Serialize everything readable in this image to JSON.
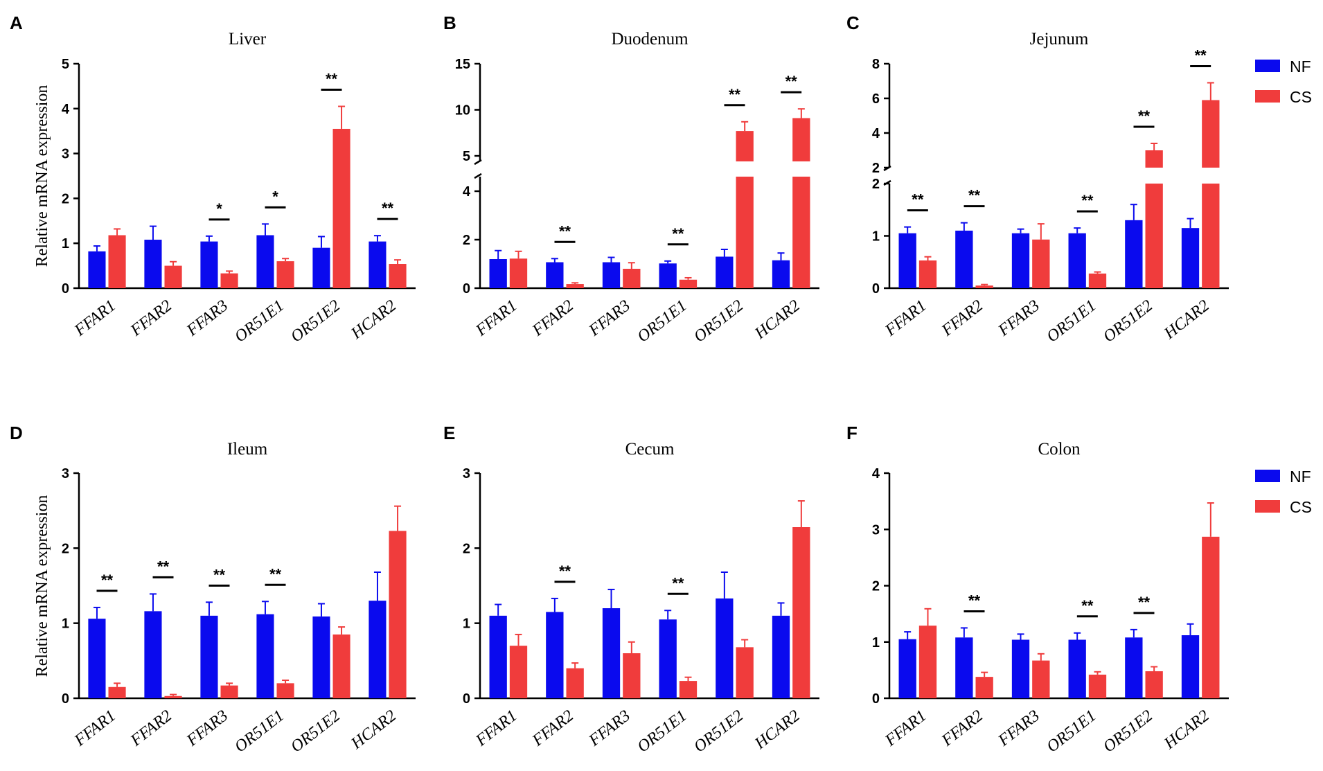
{
  "figure": {
    "series_names": [
      "NF",
      "CS"
    ],
    "colors": {
      "NF": "#0a0aee",
      "CS": "#f03c3c"
    },
    "ylabel": "Relative mRNA expression"
  },
  "legends": [
    {
      "items": [
        {
          "name": "NF",
          "color": "#0a0aee"
        },
        {
          "name": "CS",
          "color": "#f03c3c"
        }
      ]
    },
    {
      "items": [
        {
          "name": "NF",
          "color": "#0a0aee"
        },
        {
          "name": "CS",
          "color": "#f03c3c"
        }
      ]
    }
  ],
  "chart_data": [
    {
      "panel": "A",
      "type": "bar",
      "title": "Liver",
      "ylabel": "Relative mRNA expression",
      "categories": [
        "FFAR1",
        "FFAR2",
        "FFAR3",
        "OR51E1",
        "OR51E2",
        "HCAR2"
      ],
      "series": [
        {
          "name": "NF",
          "values": [
            0.82,
            1.08,
            1.04,
            1.18,
            0.9,
            1.04
          ],
          "errors": [
            0.12,
            0.3,
            0.12,
            0.25,
            0.25,
            0.13
          ]
        },
        {
          "name": "CS",
          "values": [
            1.18,
            0.5,
            0.33,
            0.6,
            3.55,
            0.54
          ],
          "errors": [
            0.14,
            0.09,
            0.05,
            0.06,
            0.5,
            0.09
          ]
        }
      ],
      "ylim": [
        0,
        5
      ],
      "yticks": [
        "0",
        "1",
        "2",
        "3",
        "4",
        "5"
      ],
      "ytick_values": [
        0,
        1,
        2,
        3,
        4,
        5
      ],
      "significance": [
        "",
        "",
        "*",
        "*",
        "**",
        "**"
      ]
    },
    {
      "panel": "B",
      "type": "bar",
      "title": "Duodenum",
      "ylabel": "",
      "categories": [
        "FFAR1",
        "FFAR2",
        "FFAR3",
        "OR51E1",
        "OR51E2",
        "HCAR2"
      ],
      "series": [
        {
          "name": "NF",
          "values": [
            1.2,
            1.07,
            1.07,
            1.02,
            1.3,
            1.15
          ],
          "errors": [
            0.35,
            0.15,
            0.2,
            0.1,
            0.3,
            0.3
          ]
        },
        {
          "name": "CS",
          "values": [
            1.22,
            0.17,
            0.8,
            0.35,
            7.7,
            9.1
          ],
          "errors": [
            0.3,
            0.05,
            0.25,
            0.08,
            1.0,
            1.0
          ]
        }
      ],
      "ylim": [
        0,
        15
      ],
      "axis_break": [
        5,
        5
      ],
      "yticks": [
        "0",
        "2",
        "4",
        "5",
        "10",
        "15"
      ],
      "ytick_values": [
        0,
        2,
        4,
        5,
        10,
        15
      ],
      "significance": [
        "",
        "**",
        "",
        "**",
        "**",
        "**"
      ]
    },
    {
      "panel": "C",
      "type": "bar",
      "title": "Jejunum",
      "ylabel": "",
      "categories": [
        "FFAR1",
        "FFAR2",
        "FFAR3",
        "OR51E1",
        "OR51E2",
        "HCAR2"
      ],
      "series": [
        {
          "name": "NF",
          "values": [
            1.05,
            1.1,
            1.05,
            1.05,
            1.3,
            1.15
          ],
          "errors": [
            0.12,
            0.15,
            0.08,
            0.1,
            0.3,
            0.18
          ]
        },
        {
          "name": "CS",
          "values": [
            0.53,
            0.05,
            0.93,
            0.28,
            3.0,
            5.9
          ],
          "errors": [
            0.07,
            0.02,
            0.3,
            0.03,
            0.4,
            1.0
          ]
        }
      ],
      "ylim": [
        0,
        8
      ],
      "axis_break": [
        2,
        2
      ],
      "yticks": [
        "0",
        "1",
        "2",
        "2",
        "4",
        "6",
        "8"
      ],
      "ytick_values": [
        0,
        1,
        2,
        2,
        4,
        6,
        8
      ],
      "significance": [
        "**",
        "**",
        "",
        "**",
        "**",
        "**"
      ]
    },
    {
      "panel": "D",
      "type": "bar",
      "title": "Ileum",
      "ylabel": "Relative mRNA expression",
      "categories": [
        "FFAR1",
        "FFAR2",
        "FFAR3",
        "OR51E1",
        "OR51E2",
        "HCAR2"
      ],
      "series": [
        {
          "name": "NF",
          "values": [
            1.06,
            1.16,
            1.1,
            1.12,
            1.09,
            1.3
          ],
          "errors": [
            0.15,
            0.23,
            0.18,
            0.17,
            0.17,
            0.38
          ]
        },
        {
          "name": "CS",
          "values": [
            0.15,
            0.03,
            0.17,
            0.2,
            0.85,
            2.23
          ],
          "errors": [
            0.05,
            0.02,
            0.03,
            0.04,
            0.1,
            0.33
          ]
        }
      ],
      "ylim": [
        0,
        3
      ],
      "yticks": [
        "0",
        "1",
        "2",
        "3"
      ],
      "ytick_values": [
        0,
        1,
        2,
        3
      ],
      "significance": [
        "**",
        "**",
        "**",
        "**",
        "",
        ""
      ]
    },
    {
      "panel": "E",
      "type": "bar",
      "title": "Cecum",
      "ylabel": "",
      "categories": [
        "FFAR1",
        "FFAR2",
        "FFAR3",
        "OR51E1",
        "OR51E2",
        "HCAR2"
      ],
      "series": [
        {
          "name": "NF",
          "values": [
            1.1,
            1.15,
            1.2,
            1.05,
            1.33,
            1.1
          ],
          "errors": [
            0.15,
            0.18,
            0.25,
            0.12,
            0.35,
            0.17
          ]
        },
        {
          "name": "CS",
          "values": [
            0.7,
            0.4,
            0.6,
            0.23,
            0.68,
            2.28
          ],
          "errors": [
            0.15,
            0.07,
            0.15,
            0.05,
            0.1,
            0.35
          ]
        }
      ],
      "ylim": [
        0,
        3
      ],
      "yticks": [
        "0",
        "1",
        "2",
        "3"
      ],
      "ytick_values": [
        0,
        1,
        2,
        3
      ],
      "significance": [
        "",
        "**",
        "",
        "**",
        "",
        ""
      ]
    },
    {
      "panel": "F",
      "type": "bar",
      "title": "Colon",
      "ylabel": "",
      "categories": [
        "FFAR1",
        "FFAR2",
        "FFAR3",
        "OR51E1",
        "OR51E2",
        "HCAR2"
      ],
      "series": [
        {
          "name": "NF",
          "values": [
            1.05,
            1.08,
            1.04,
            1.04,
            1.08,
            1.12
          ],
          "errors": [
            0.13,
            0.17,
            0.1,
            0.12,
            0.14,
            0.2
          ]
        },
        {
          "name": "CS",
          "values": [
            1.29,
            0.38,
            0.67,
            0.42,
            0.48,
            2.87
          ],
          "errors": [
            0.3,
            0.08,
            0.12,
            0.05,
            0.08,
            0.6
          ]
        }
      ],
      "ylim": [
        0,
        4
      ],
      "yticks": [
        "0",
        "1",
        "2",
        "3",
        "4"
      ],
      "ytick_values": [
        0,
        1,
        2,
        3,
        4
      ],
      "significance": [
        "",
        "**",
        "",
        "**",
        "**",
        ""
      ]
    }
  ]
}
